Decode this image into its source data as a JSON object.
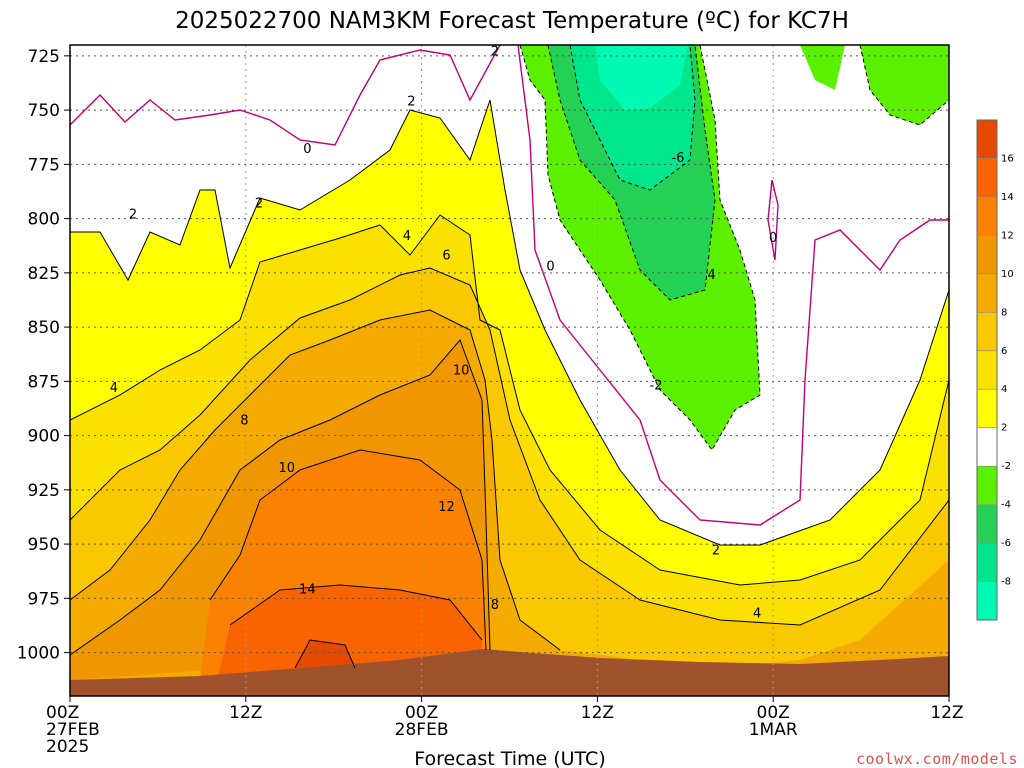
{
  "chart_data": {
    "type": "heatmap",
    "title": "2025022700 NAM3KM Forecast Temperature (ºC) for KC7H",
    "xlabel": "Forecast Time (UTC)",
    "credit": "coolwx.com/models",
    "y_axis": {
      "ticks": [
        725,
        750,
        775,
        800,
        825,
        850,
        875,
        900,
        925,
        950,
        975,
        1000
      ],
      "range": [
        1020,
        720
      ],
      "reversed": true
    },
    "x_axis": {
      "ticks": [
        {
          "hour": 0,
          "lines": [
            "00Z",
            "27FEB",
            "2025"
          ]
        },
        {
          "hour": 12,
          "lines": [
            "12Z"
          ]
        },
        {
          "hour": 24,
          "lines": [
            "00Z",
            "28FEB"
          ]
        },
        {
          "hour": 36,
          "lines": [
            "12Z"
          ]
        },
        {
          "hour": 48,
          "lines": [
            "00Z",
            "1MAR"
          ]
        },
        {
          "hour": 60,
          "lines": [
            "12Z"
          ]
        }
      ],
      "range": [
        0,
        60
      ]
    },
    "grid": true,
    "colorbar": {
      "labels": [
        "16",
        "14",
        "12",
        "10",
        "8",
        "6",
        "4",
        "2",
        "-2",
        "-4",
        "-6",
        "-8"
      ],
      "colors": [
        "#e64a00",
        "#fa6400",
        "#fa8200",
        "#f09600",
        "#f5aa00",
        "#fac800",
        "#fae100",
        "#ffff00",
        "#ffffff",
        "#5af000",
        "#23d255",
        "#00e68c",
        "#00fab4"
      ]
    },
    "contour_labels": [
      {
        "text": "2",
        "x": 4.3,
        "y": 798
      },
      {
        "text": "2",
        "x": 12.9,
        "y": 793
      },
      {
        "text": "2",
        "x": 23.3,
        "y": 746
      },
      {
        "text": "2",
        "x": 29.0,
        "y": 723
      },
      {
        "text": "0",
        "x": 16.2,
        "y": 768
      },
      {
        "text": "0",
        "x": 32.8,
        "y": 822
      },
      {
        "text": "0",
        "x": 48.0,
        "y": 809
      },
      {
        "text": "4",
        "x": 3.0,
        "y": 878
      },
      {
        "text": "4",
        "x": 23.0,
        "y": 808
      },
      {
        "text": "4",
        "x": 43.8,
        "y": 826
      },
      {
        "text": "4",
        "x": 46.9,
        "y": 982
      },
      {
        "text": "6",
        "x": 25.7,
        "y": 817
      },
      {
        "text": "8",
        "x": 11.9,
        "y": 893
      },
      {
        "text": "8",
        "x": 29.0,
        "y": 978
      },
      {
        "text": "10",
        "x": 14.8,
        "y": 915
      },
      {
        "text": "10",
        "x": 26.7,
        "y": 870
      },
      {
        "text": "12",
        "x": 25.7,
        "y": 933
      },
      {
        "text": "14",
        "x": 16.2,
        "y": 971
      },
      {
        "text": "2",
        "x": 44.1,
        "y": 953
      },
      {
        "text": "-2",
        "x": 40.0,
        "y": 877
      },
      {
        "text": "-6",
        "x": 41.5,
        "y": 772
      }
    ]
  }
}
